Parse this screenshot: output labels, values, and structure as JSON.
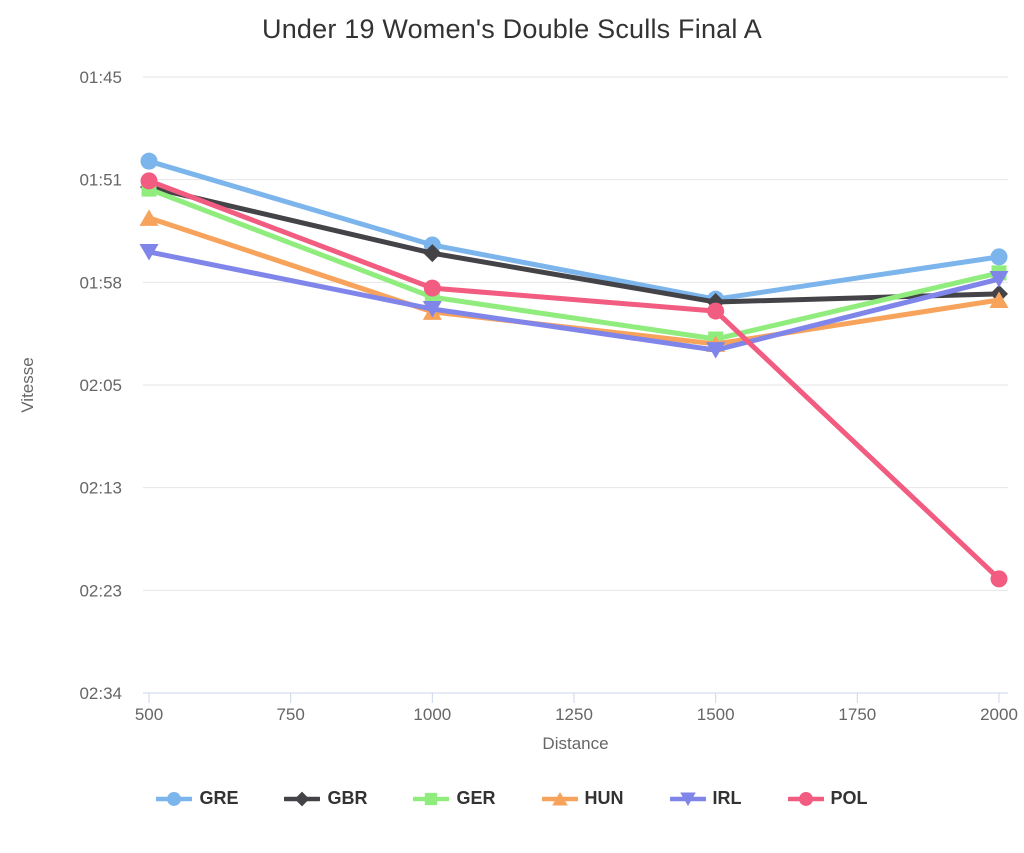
{
  "page": {
    "background": "#ffffff"
  },
  "chart_data": {
    "type": "line",
    "title": "Under 19 Women's Double Sculls Final A",
    "xlabel": "Distance",
    "ylabel": "Vitesse",
    "x": [
      500,
      1000,
      1500,
      2000
    ],
    "x_ticks": [
      "500",
      "750",
      "1000",
      "1250",
      "1500",
      "1750",
      "2000"
    ],
    "x_tick_values": [
      500,
      750,
      1000,
      1250,
      1500,
      1750,
      2000
    ],
    "xlim": [
      489,
      2016
    ],
    "y_axis_note": "axis is linear in boat speed (m/s); tick labels show the equivalent 500 m split time",
    "y_ticks": [
      {
        "label": "01:45",
        "speed": 4.75
      },
      {
        "label": "01:51",
        "speed": 4.5
      },
      {
        "label": "01:58",
        "speed": 4.25
      },
      {
        "label": "02:05",
        "speed": 4.0
      },
      {
        "label": "02:13",
        "speed": 3.75
      },
      {
        "label": "02:23",
        "speed": 3.5
      },
      {
        "label": "02:34",
        "speed": 3.25
      }
    ],
    "ylim_speed": [
      3.25,
      4.75
    ],
    "grid": "horizontal-only",
    "legend_position": "bottom-center",
    "series": [
      {
        "name": "GRE",
        "color": "#7cb5ec",
        "marker": "circle",
        "speeds_ms": [
          4.545,
          4.341,
          4.209,
          4.312
        ],
        "splits": [
          "01:50.0",
          "01:55.2",
          "01:58.8",
          "01:56.0"
        ]
      },
      {
        "name": "GBR",
        "color": "#434348",
        "marker": "diamond",
        "speeds_ms": [
          4.482,
          4.321,
          4.202,
          4.222
        ],
        "splits": [
          "01:51.6",
          "01:55.7",
          "01:59.0",
          "01:58.4"
        ]
      },
      {
        "name": "GER",
        "color": "#90ed7d",
        "marker": "square",
        "speeds_ms": [
          4.477,
          4.214,
          4.112,
          4.273
        ],
        "splits": [
          "01:51.7",
          "01:58.6",
          "02:01.6",
          "01:57.0"
        ]
      },
      {
        "name": "HUN",
        "color": "#f7a35c",
        "marker": "triangle",
        "speeds_ms": [
          4.407,
          4.178,
          4.1,
          4.207
        ],
        "splits": [
          "01:53.5",
          "01:59.7",
          "02:02.0",
          "01:58.8"
        ]
      },
      {
        "name": "IRL",
        "color": "#8085e9",
        "marker": "triangle-down",
        "speeds_ms": [
          4.324,
          4.185,
          4.085,
          4.258
        ],
        "splits": [
          "01:55.6",
          "01:59.5",
          "02:02.4",
          "01:57.4"
        ]
      },
      {
        "name": "POL",
        "color": "#f15c80",
        "marker": "circle",
        "speeds_ms": [
          4.497,
          4.236,
          4.18,
          3.528
        ],
        "splits": [
          "01:51.2",
          "01:58.0",
          "01:59.6",
          "02:21.7"
        ]
      }
    ]
  },
  "colors": {
    "grid_line": "#e6e6e6",
    "axis_line": "#ccd6eb",
    "title_text": "#333333",
    "axis_tick_text": "#666666",
    "axis_title_text": "#666666",
    "legend_text": "#333333"
  }
}
